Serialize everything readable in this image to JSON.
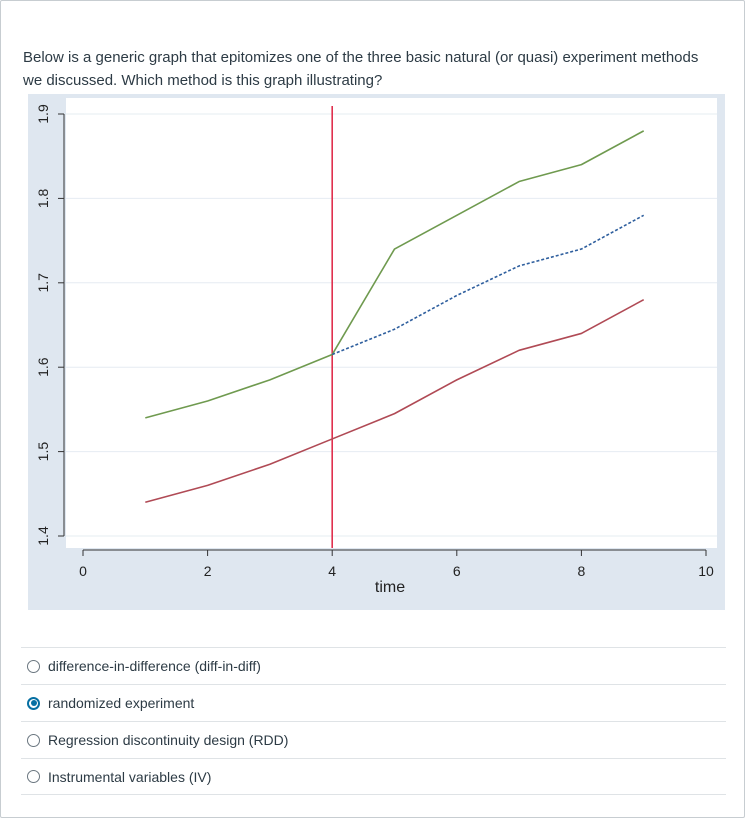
{
  "question": {
    "text": "Below is a generic graph that epitomizes one of the three basic natural (or quasi) experiment methods we discussed. Which method is this graph illustrating?"
  },
  "answers": [
    {
      "label": "difference-in-difference (diff-in-diff)",
      "selected": false
    },
    {
      "label": "randomized experiment",
      "selected": true
    },
    {
      "label": "Regression discontinuity design (RDD)",
      "selected": false
    },
    {
      "label": "Instrumental variables (IV)",
      "selected": false
    }
  ],
  "colors": {
    "green": "#6f9a4f",
    "red": "#b04a55",
    "dashed": "#2f5f9e",
    "vline": "#e0304e",
    "selected": "#0770a3"
  },
  "chart_data": {
    "type": "line",
    "xlabel": "time",
    "ylabel": "",
    "xlim": [
      0,
      10
    ],
    "ylim": [
      1.4,
      1.9
    ],
    "xticks": [
      0,
      2,
      4,
      6,
      8,
      10
    ],
    "yticks": [
      1.4,
      1.5,
      1.6,
      1.7,
      1.8,
      1.9
    ],
    "vline_x": 4,
    "grid": true,
    "series": [
      {
        "color": "#6f9a4f",
        "style": "solid",
        "x": [
          1,
          2,
          3,
          4,
          5,
          6,
          7,
          8,
          9
        ],
        "y": [
          1.54,
          1.56,
          1.585,
          1.615,
          1.74,
          1.78,
          1.82,
          1.84,
          1.88
        ]
      },
      {
        "color": "#2f5f9e",
        "style": "dashed",
        "x": [
          4,
          5,
          6,
          7,
          8,
          9
        ],
        "y": [
          1.615,
          1.645,
          1.685,
          1.72,
          1.74,
          1.78
        ]
      },
      {
        "color": "#b04a55",
        "style": "solid",
        "x": [
          1,
          2,
          3,
          4,
          5,
          6,
          7,
          8,
          9
        ],
        "y": [
          1.44,
          1.46,
          1.485,
          1.515,
          1.545,
          1.585,
          1.62,
          1.64,
          1.68
        ]
      }
    ]
  }
}
